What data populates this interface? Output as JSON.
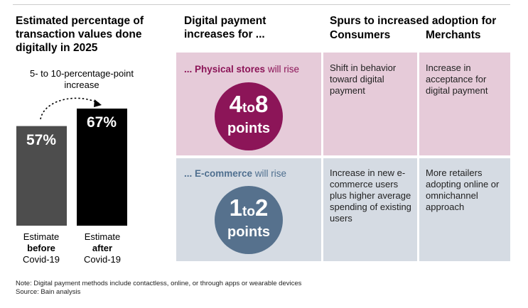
{
  "chart_data": {
    "type": "bar",
    "title": "Estimated percentage of transaction values done digitally in 2025",
    "annotation": "5- to 10-percentage-point increase",
    "categories": [
      {
        "line1": "Estimate",
        "line2": "before",
        "line3": "Covid-19"
      },
      {
        "line1": "Estimate",
        "line2": "after",
        "line3": "Covid-19"
      }
    ],
    "values": [
      57,
      67
    ],
    "value_labels": [
      "57%",
      "67%"
    ],
    "ylim": [
      0,
      100
    ],
    "colors": [
      "#4d4d4d",
      "#000000"
    ]
  },
  "table": {
    "col1_header": "Digital payment increases for ...",
    "col2_header": "Spurs to increased adoption for",
    "consumers_header": "Consumers",
    "merchants_header": "Merchants",
    "rows": [
      {
        "lead_bold": "... Physical stores",
        "lead_rest": " will rise",
        "range_low": "4",
        "range_to": "to",
        "range_high": "8",
        "unit": "points",
        "consumers": "Shift in behavior toward digital payment",
        "merchants": "Increase in acceptance for digital payment",
        "color": "#8c1558"
      },
      {
        "lead_bold": "... E-commerce",
        "lead_rest": " will rise",
        "range_low": "1",
        "range_to": "to",
        "range_high": "2",
        "unit": "points",
        "consumers": "Increase in new e-commerce users plus higher average spending of existing users",
        "merchants": "More retailers adopting online or omnichannel approach",
        "color": "#56718d"
      }
    ]
  },
  "footnote": {
    "note": "Note: Digital payment methods include contactless, online, or through apps or wearable devices",
    "source": "Source: Bain analysis"
  }
}
